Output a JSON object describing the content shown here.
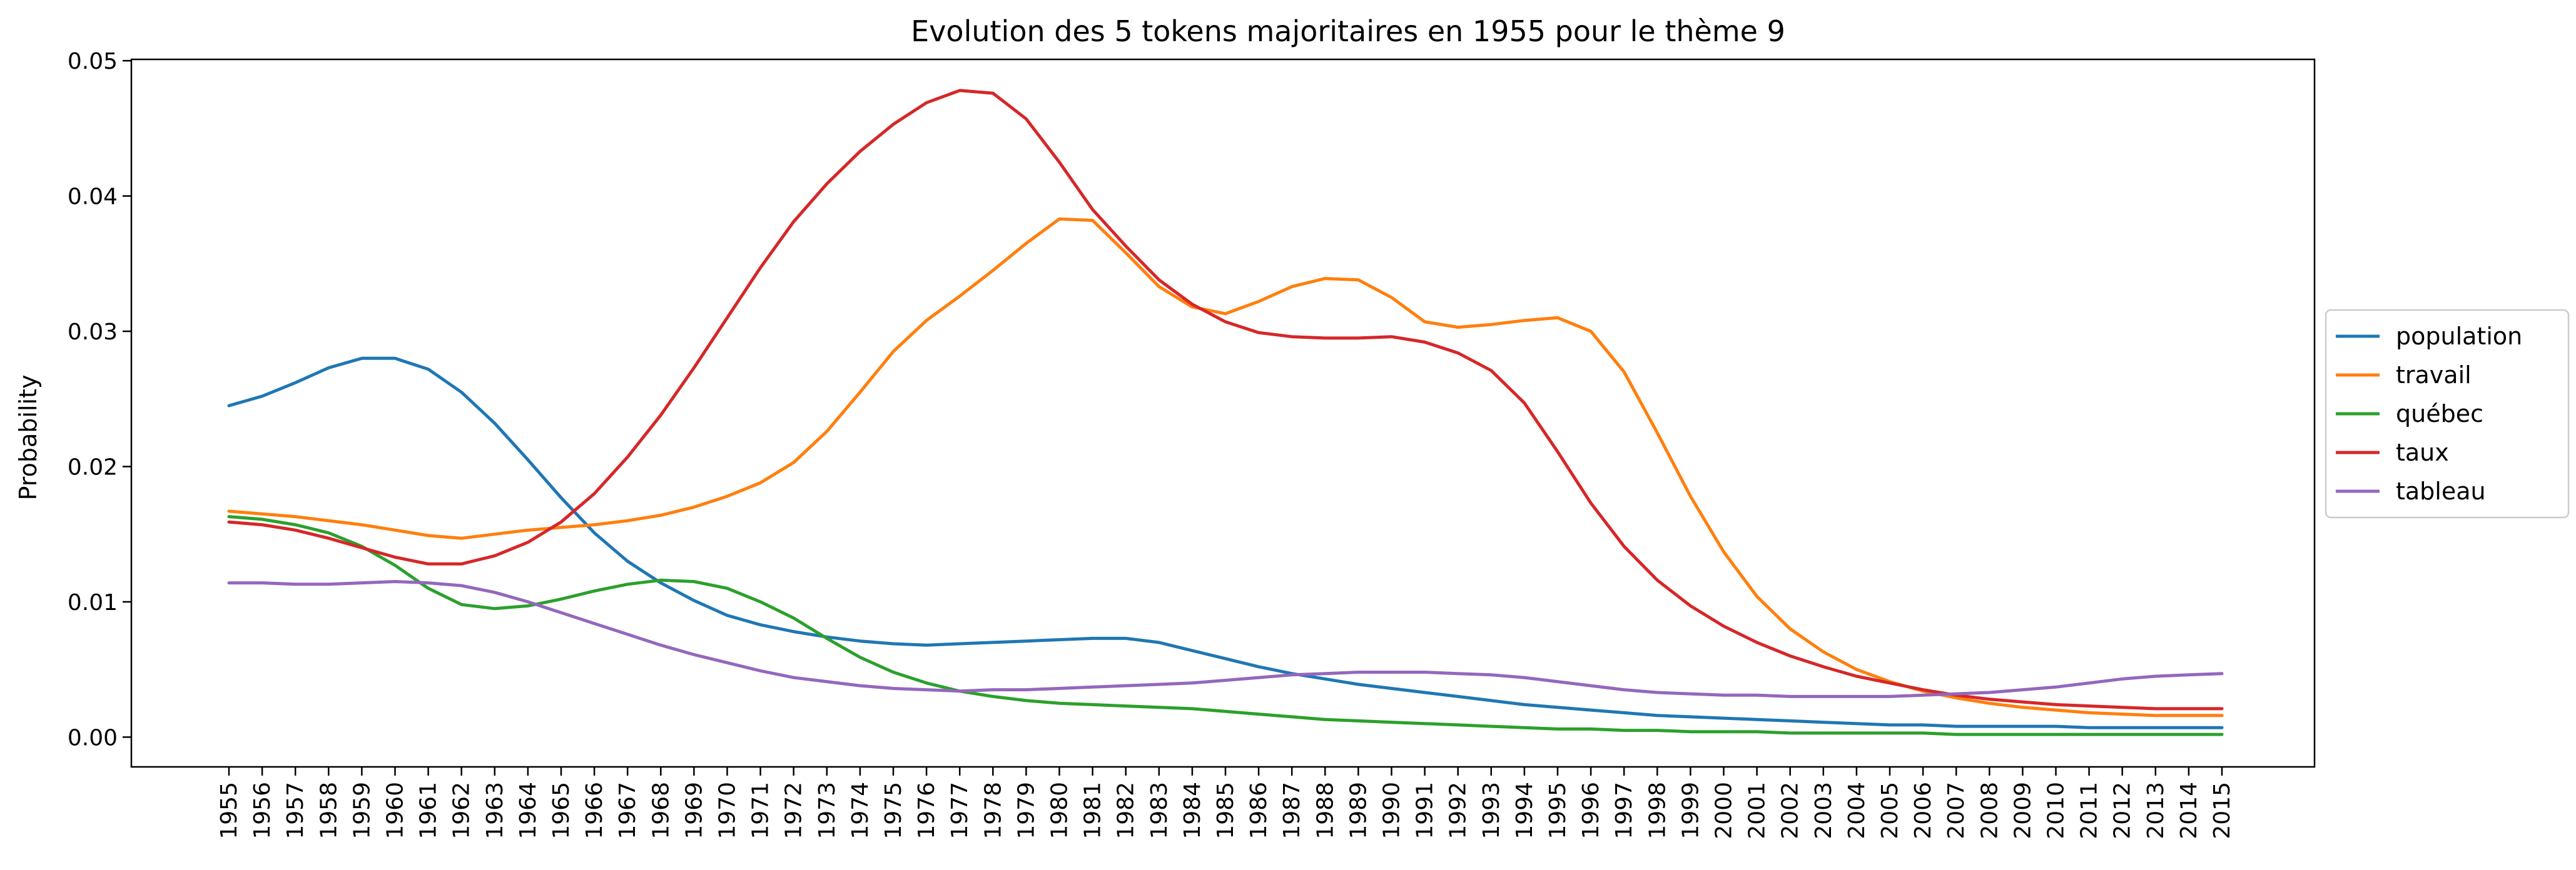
{
  "chart_data": {
    "type": "line",
    "title": "Evolution des 5 tokens majoritaires en 1955 pour le thème 9",
    "xlabel": "",
    "ylabel": "Probability",
    "ylim": [
      -0.0022,
      0.0501
    ],
    "y_ticks": [
      "0.00",
      "0.01",
      "0.02",
      "0.03",
      "0.04",
      "0.05"
    ],
    "y_tick_values": [
      0,
      0.01,
      0.02,
      0.03,
      0.04,
      0.05
    ],
    "grid": false,
    "legend_placement": "right-outside",
    "x": [
      "1955",
      "1956",
      "1957",
      "1958",
      "1959",
      "1960",
      "1961",
      "1962",
      "1963",
      "1964",
      "1965",
      "1966",
      "1967",
      "1968",
      "1969",
      "1970",
      "1971",
      "1972",
      "1973",
      "1974",
      "1975",
      "1976",
      "1977",
      "1978",
      "1979",
      "1980",
      "1981",
      "1982",
      "1983",
      "1984",
      "1985",
      "1986",
      "1987",
      "1988",
      "1989",
      "1990",
      "1991",
      "1992",
      "1993",
      "1994",
      "1995",
      "1996",
      "1997",
      "1998",
      "1999",
      "2000",
      "2001",
      "2002",
      "2003",
      "2004",
      "2005",
      "2006",
      "2007",
      "2008",
      "2009",
      "2010",
      "2011",
      "2012",
      "2013",
      "2014",
      "2015"
    ],
    "series": [
      {
        "name": "population",
        "color": "#1f77b4",
        "values": [
          0.0245,
          0.0252,
          0.0262,
          0.0273,
          0.028,
          0.028,
          0.0272,
          0.0255,
          0.0232,
          0.0205,
          0.0177,
          0.0151,
          0.013,
          0.0114,
          0.0101,
          0.009,
          0.0083,
          0.0078,
          0.0074,
          0.0071,
          0.0069,
          0.0068,
          0.0069,
          0.007,
          0.0071,
          0.0072,
          0.0073,
          0.0073,
          0.007,
          0.0064,
          0.0058,
          0.0052,
          0.0047,
          0.0043,
          0.0039,
          0.0036,
          0.0033,
          0.003,
          0.0027,
          0.0024,
          0.0022,
          0.002,
          0.0018,
          0.0016,
          0.0015,
          0.0014,
          0.0013,
          0.0012,
          0.0011,
          0.001,
          0.0009,
          0.0009,
          0.0008,
          0.0008,
          0.0008,
          0.0008,
          0.0007,
          0.0007,
          0.0007,
          0.0007,
          0.0007
        ]
      },
      {
        "name": "travail",
        "color": "#ff7f0e",
        "values": [
          0.0167,
          0.0165,
          0.0163,
          0.016,
          0.0157,
          0.0153,
          0.0149,
          0.0147,
          0.015,
          0.0153,
          0.0155,
          0.0157,
          0.016,
          0.0164,
          0.017,
          0.0178,
          0.0188,
          0.0203,
          0.0226,
          0.0255,
          0.0285,
          0.0308,
          0.0326,
          0.0345,
          0.0365,
          0.0383,
          0.0382,
          0.0358,
          0.0333,
          0.0318,
          0.0313,
          0.0322,
          0.0333,
          0.0339,
          0.0338,
          0.0325,
          0.0307,
          0.0303,
          0.0305,
          0.0308,
          0.031,
          0.03,
          0.027,
          0.0225,
          0.0178,
          0.0137,
          0.0104,
          0.008,
          0.0063,
          0.005,
          0.0041,
          0.0034,
          0.0029,
          0.0025,
          0.0022,
          0.002,
          0.0018,
          0.0017,
          0.0016,
          0.0016,
          0.0016
        ]
      },
      {
        "name": "québec",
        "color": "#2ca02c",
        "values": [
          0.0163,
          0.0161,
          0.0157,
          0.0151,
          0.0141,
          0.0127,
          0.011,
          0.0098,
          0.0095,
          0.0097,
          0.0102,
          0.0108,
          0.0113,
          0.0116,
          0.0115,
          0.011,
          0.01,
          0.0088,
          0.0073,
          0.0059,
          0.0048,
          0.004,
          0.0034,
          0.003,
          0.0027,
          0.0025,
          0.0024,
          0.0023,
          0.0022,
          0.0021,
          0.0019,
          0.0017,
          0.0015,
          0.0013,
          0.0012,
          0.0011,
          0.001,
          0.0009,
          0.0008,
          0.0007,
          0.0006,
          0.0006,
          0.0005,
          0.0005,
          0.0004,
          0.0004,
          0.0004,
          0.0003,
          0.0003,
          0.0003,
          0.0003,
          0.0003,
          0.0002,
          0.0002,
          0.0002,
          0.0002,
          0.0002,
          0.0002,
          0.0002,
          0.0002,
          0.0002
        ]
      },
      {
        "name": "taux",
        "color": "#d62728",
        "values": [
          0.0159,
          0.0157,
          0.0153,
          0.0147,
          0.014,
          0.0133,
          0.0128,
          0.0128,
          0.0134,
          0.0144,
          0.0159,
          0.018,
          0.0207,
          0.0238,
          0.0273,
          0.031,
          0.0347,
          0.0381,
          0.0409,
          0.0433,
          0.0453,
          0.0469,
          0.0478,
          0.0476,
          0.0457,
          0.0425,
          0.039,
          0.0363,
          0.0338,
          0.032,
          0.0307,
          0.0299,
          0.0296,
          0.0295,
          0.0295,
          0.0296,
          0.0292,
          0.0284,
          0.0271,
          0.0247,
          0.0211,
          0.0173,
          0.0141,
          0.0116,
          0.0097,
          0.0082,
          0.007,
          0.006,
          0.0052,
          0.0045,
          0.004,
          0.0035,
          0.0031,
          0.0028,
          0.0026,
          0.0024,
          0.0023,
          0.0022,
          0.0021,
          0.0021,
          0.0021
        ]
      },
      {
        "name": "tableau",
        "color": "#9467bd",
        "values": [
          0.0114,
          0.0114,
          0.0113,
          0.0113,
          0.0114,
          0.0115,
          0.0114,
          0.0112,
          0.0107,
          0.01,
          0.0092,
          0.0084,
          0.0076,
          0.0068,
          0.0061,
          0.0055,
          0.0049,
          0.0044,
          0.0041,
          0.0038,
          0.0036,
          0.0035,
          0.0034,
          0.0035,
          0.0035,
          0.0036,
          0.0037,
          0.0038,
          0.0039,
          0.004,
          0.0042,
          0.0044,
          0.0046,
          0.0047,
          0.0048,
          0.0048,
          0.0048,
          0.0047,
          0.0046,
          0.0044,
          0.0041,
          0.0038,
          0.0035,
          0.0033,
          0.0032,
          0.0031,
          0.0031,
          0.003,
          0.003,
          0.003,
          0.003,
          0.0031,
          0.0032,
          0.0033,
          0.0035,
          0.0037,
          0.004,
          0.0043,
          0.0045,
          0.0046,
          0.0047
        ]
      }
    ]
  }
}
